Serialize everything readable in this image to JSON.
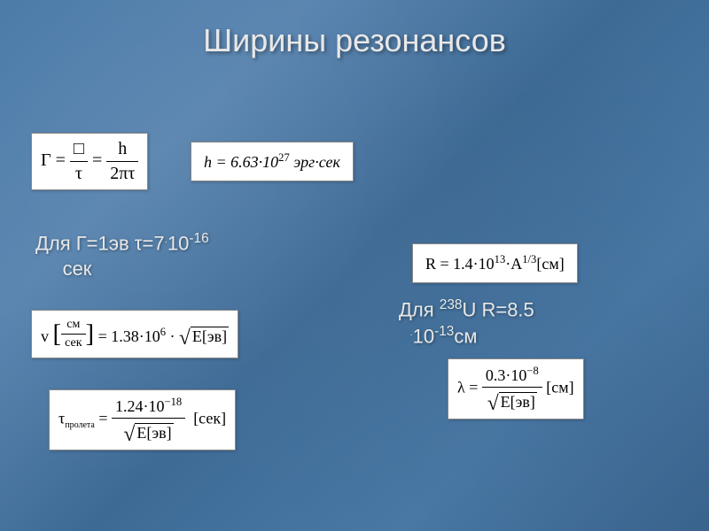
{
  "title": "Ширины резонансов",
  "formulas": {
    "gamma": {
      "lhs": "Γ",
      "mid_num": "□",
      "mid_den": "τ",
      "rhs_num": "h",
      "rhs_den": "2πτ"
    },
    "h_const": {
      "text_pre": "h = 6.63·10",
      "exp": "27",
      "units": " эрг·сек"
    },
    "text1_line1": "Для Г=1эв τ=7",
    "text1_dot": "·",
    "text1_line2a": "10",
    "text1_exp": "-16",
    "text1_line2b": " сек",
    "v_formula": {
      "v": "v",
      "unit_num": "см",
      "unit_den": "сек",
      "eq": " = 1.38·10",
      "exp": "6",
      "dot": "·",
      "E": "E[эв]"
    },
    "tau_formula": {
      "tau": "τ",
      "sub": "пролета",
      "num_a": "1.24·10",
      "num_exp": "−18",
      "den": "E[эв]",
      "units": "[сек]"
    },
    "R_formula": {
      "pre": "R = 1.4·10",
      "exp": "13",
      "mid": "·A",
      "exp2": "1/3",
      "units": "[см]"
    },
    "text2_line1a": "Для ",
    "text2_sup": "238",
    "text2_line1b": "U   R=8.5",
    "text2_dot": "·",
    "text2_line2a": "10",
    "text2_exp": "-13",
    "text2_line2b": "см",
    "lambda_formula": {
      "lambda": "λ",
      "num_a": "0.3·10",
      "num_exp": "−8",
      "den": "E[эв]",
      "units": "[см]"
    }
  },
  "colors": {
    "bg": "#4a7aa8",
    "text": "#e8e8e8",
    "box_bg": "#ffffff",
    "box_text": "#000000"
  },
  "typography": {
    "title_fontsize": 36,
    "label_fontsize": 22,
    "formula_fontsize": 18
  }
}
